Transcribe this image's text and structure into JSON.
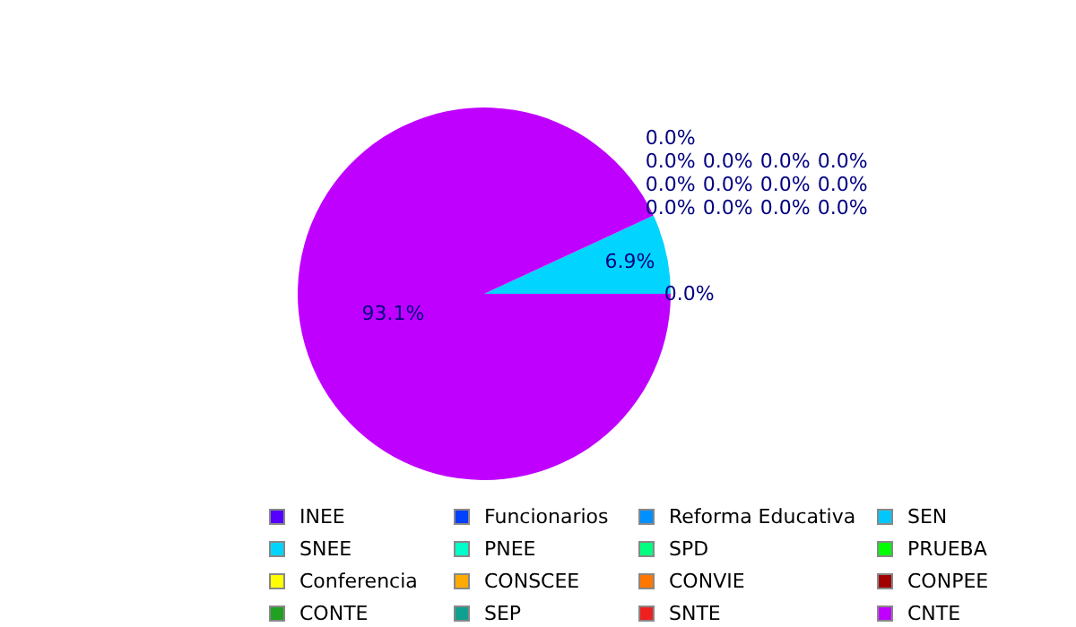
{
  "chart_data": {
    "type": "pie",
    "categories": [
      "INEE",
      "SNEE",
      "Conferencia",
      "CONTE",
      "Funcionarios",
      "PNEE",
      "CONSCEE",
      "SEP",
      "Reforma Educativa",
      "SPD",
      "CONVIE",
      "SNTE",
      "SEN",
      "PRUEBA",
      "CONPEE",
      "CNTE"
    ],
    "values": [
      0,
      6.9,
      0,
      0,
      0,
      0,
      0,
      0,
      0,
      0,
      0,
      0,
      0,
      0,
      0,
      93.1
    ],
    "value_labels": [
      "0.0%",
      "6.9%",
      "0.0%",
      "0.0%",
      "0.0%",
      "0.0%",
      "0.0%",
      "0.0%",
      "0.0%",
      "0.0%",
      "0.0%",
      "0.0%",
      "0.0%",
      "0.0%",
      "0.0%",
      "93.1%"
    ],
    "colors": [
      "#5500ff",
      "#00d4ff",
      "#ffff00",
      "#22a022",
      "#0040ff",
      "#00ffc8",
      "#ffaa00",
      "#10a090",
      "#0090ff",
      "#00ff80",
      "#ff7700",
      "#ee2020",
      "#00c8ff",
      "#00ff00",
      "#a00000",
      "#c000ff"
    ],
    "legend": "bottom"
  }
}
